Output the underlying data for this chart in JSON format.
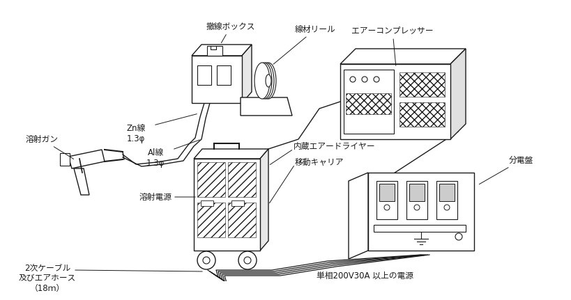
{
  "bg_color": "#ffffff",
  "line_color": "#1a1a1a",
  "labels": {
    "senken_box": "撤線ボックス",
    "wire_reel": "線材リール",
    "zn_line": "Zn線\n1.3φ",
    "al_line": "Al線\n1.3φ",
    "spray_gun": "溶射ガン",
    "air_compressor": "エアーコンプレッサー",
    "air_dryer": "内蔵エアードライヤー",
    "mobile_carrier": "移動キャリア",
    "spray_power": "溶射電源",
    "secondary_cable": "2次ケーブル\n及びエアホース\n（18ｍ）",
    "distribution_board": "分電盤",
    "power_source": "単相200V30A 以上の電源"
  },
  "font_size": 8.5
}
